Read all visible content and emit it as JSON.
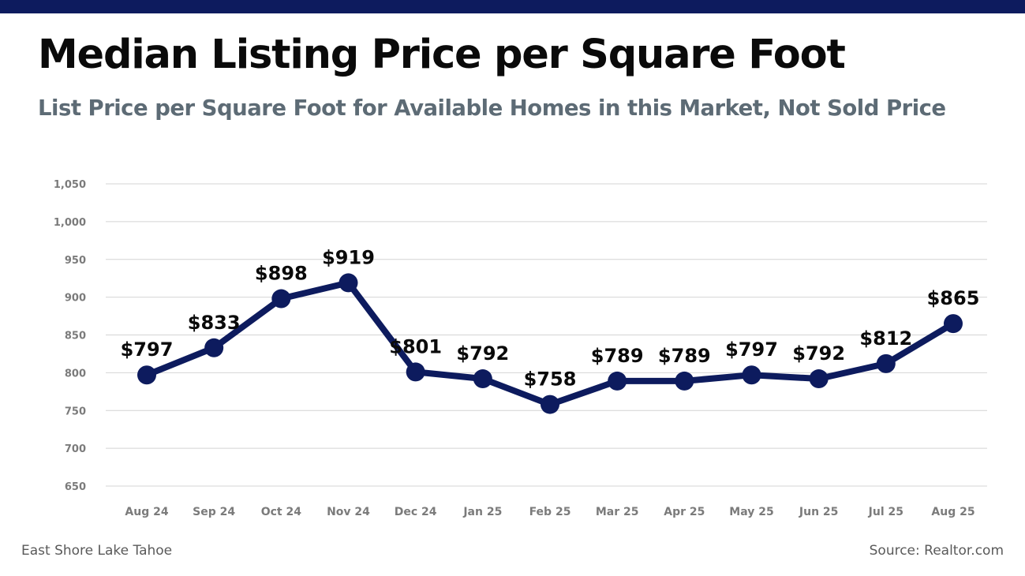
{
  "header": {
    "title": "Median Listing Price per Square Foot",
    "subtitle": "List Price per Square Foot for Available Homes in this Market, Not Sold Price"
  },
  "footer": {
    "left": "East Shore Lake Tahoe",
    "right": "Source: Realtor.com"
  },
  "colors": {
    "accent": "#0d1b5e",
    "line": "#0d1b5e",
    "grid": "#d4d4d4",
    "axis_text": "#7b7b7b",
    "subtitle": "#5d6b75"
  },
  "chart_data": {
    "type": "line",
    "categories": [
      "Aug 24",
      "Sep 24",
      "Oct 24",
      "Nov 24",
      "Dec 24",
      "Jan 25",
      "Feb 25",
      "Mar 25",
      "Apr 25",
      "May 25",
      "Jun 25",
      "Jul 25",
      "Aug 25"
    ],
    "series": [
      {
        "values": [
          797,
          833,
          898,
          919,
          801,
          792,
          758,
          789,
          789,
          797,
          792,
          812,
          865
        ]
      }
    ],
    "data_labels": [
      "$797",
      "$833",
      "$898",
      "$919",
      "$801",
      "$792",
      "$758",
      "$789",
      "$789",
      "$797",
      "$792",
      "$812",
      "$865"
    ],
    "y_ticks": [
      650,
      700,
      750,
      800,
      850,
      900,
      950,
      1000,
      1050
    ],
    "y_tick_labels": [
      "650",
      "700",
      "750",
      "800",
      "850",
      "900",
      "950",
      "1,000",
      "1,050"
    ],
    "ylim": [
      650,
      1050
    ],
    "grid": true,
    "legend": "none"
  }
}
